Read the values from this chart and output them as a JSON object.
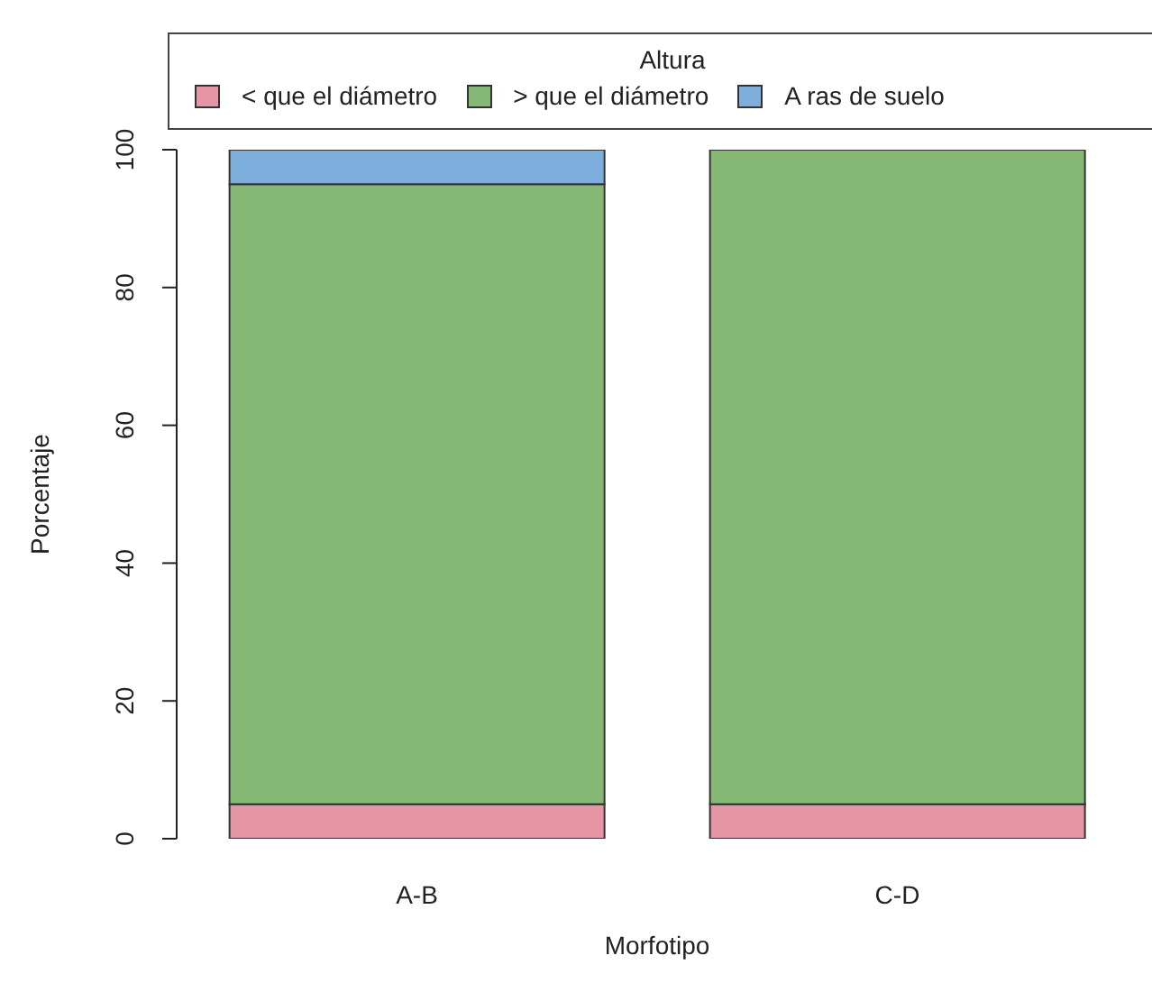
{
  "chart_data": {
    "type": "bar",
    "stacked": true,
    "xlabel": "Morfotipo",
    "ylabel": "Porcentaje",
    "legend_title": "Altura",
    "legend": "top",
    "categories": [
      "A-B",
      "C-D"
    ],
    "series": [
      {
        "name": "< que el diámetro",
        "color": "#e595a3",
        "values": [
          5,
          5
        ]
      },
      {
        "name": "> que el diámetro",
        "color": "#86b875",
        "values": [
          90,
          95
        ]
      },
      {
        "name": "A ras de suelo",
        "color": "#7eaedb",
        "values": [
          5,
          0
        ]
      }
    ],
    "ylim": [
      0,
      100
    ],
    "yticks": [
      0,
      20,
      40,
      60,
      80,
      100
    ],
    "grid": false
  }
}
